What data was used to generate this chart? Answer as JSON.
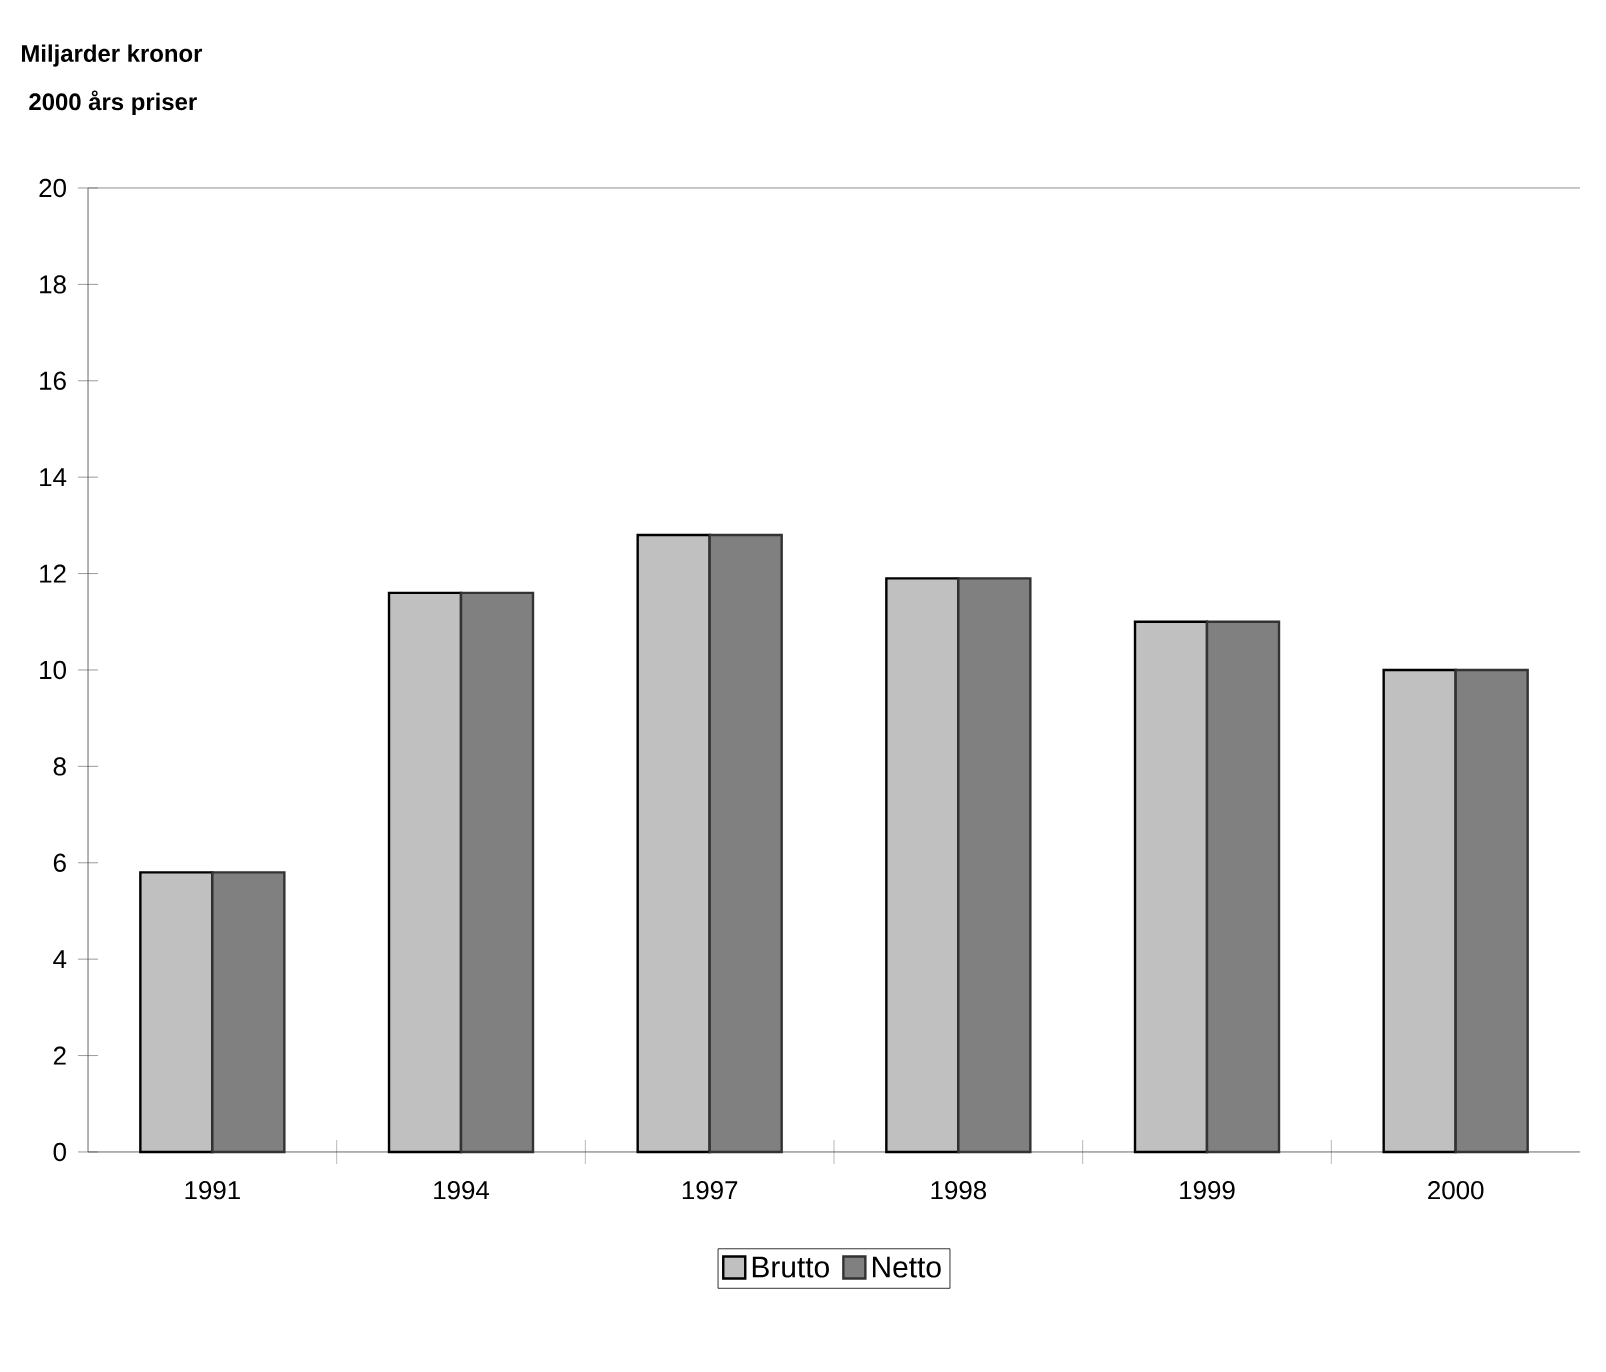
{
  "chart_data": {
    "type": "bar",
    "title": "Miljarder kronor",
    "subtitle": "2000 års priser",
    "categories": [
      "1991",
      "1994",
      "1997",
      "1998",
      "1999",
      "2000"
    ],
    "series": [
      {
        "name": "Brutto",
        "color": "#c0c0c0",
        "values": [
          5.8,
          11.6,
          12.8,
          11.9,
          11.0,
          10.0
        ]
      },
      {
        "name": "Netto",
        "color": "#808080",
        "values": [
          5.8,
          11.6,
          12.8,
          11.9,
          11.0,
          10.0
        ]
      }
    ],
    "ylim": [
      0,
      20
    ],
    "yticks": [
      0,
      2,
      4,
      6,
      8,
      10,
      12,
      14,
      16,
      18,
      20
    ],
    "grid": false,
    "legend": "bottom"
  }
}
